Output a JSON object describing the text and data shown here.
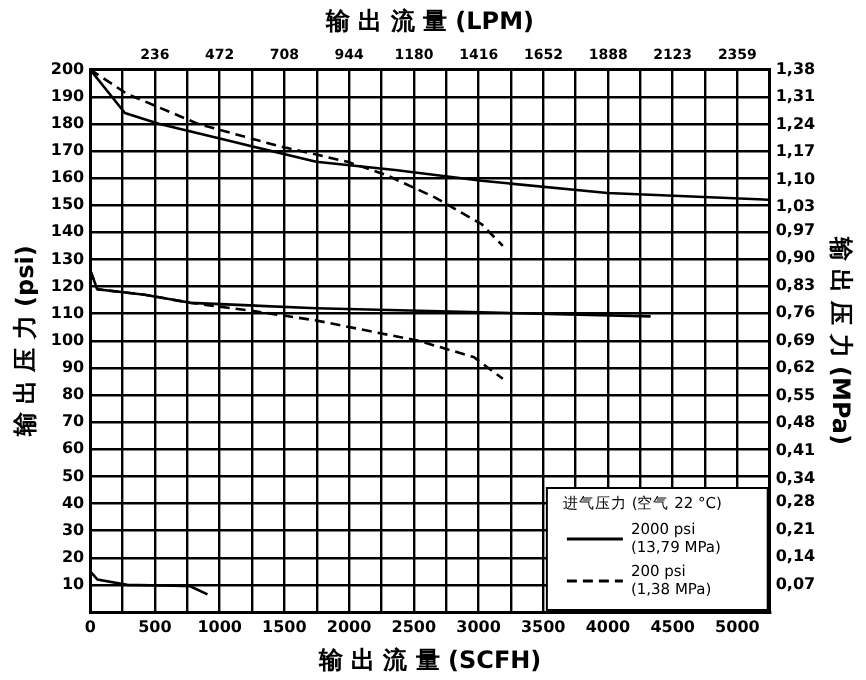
{
  "chart_data": {
    "type": "line",
    "xlabel": "输 出 流 量 (SCFH)",
    "x2label": "输 出 流 量 (LPM)",
    "ylabel": "输 出 压 力 (psi)",
    "y2label": "输 出 压 力 (MPa)",
    "legend_title": "进气压力 (空气 22 °C)",
    "xlim": [
      0,
      5250
    ],
    "xticks": [
      0,
      {
        "value": 250,
        "label": null
      },
      500,
      {
        "value": 750,
        "label": null
      },
      1000,
      {
        "value": 1250,
        "label": null
      },
      1500,
      {
        "value": 1750,
        "label": null
      },
      2000,
      {
        "value": 2250,
        "label": null
      },
      2500,
      {
        "value": 2750,
        "label": null
      },
      3000,
      {
        "value": 3250,
        "label": null
      },
      3500,
      {
        "value": 3750,
        "label": null
      },
      4000,
      {
        "value": 4250,
        "label": null
      },
      4500,
      {
        "value": 4750,
        "label": null
      },
      5000
    ],
    "x2lim": [
      0,
      2477
    ],
    "x2ticks": [
      236,
      472,
      708,
      944,
      1180,
      1416,
      1652,
      1888,
      2123,
      2359
    ],
    "ylim": [
      0,
      200
    ],
    "yticks": [
      10,
      20,
      30,
      40,
      50,
      60,
      70,
      80,
      90,
      100,
      110,
      120,
      130,
      140,
      150,
      160,
      170,
      180,
      190,
      200
    ],
    "y2lim": [
      0,
      1.38
    ],
    "y2ticks": [
      {
        "value": 0.07,
        "label": "0,07"
      },
      {
        "value": 0.14,
        "label": "0,14"
      },
      {
        "value": 0.21,
        "label": "0,21"
      },
      {
        "value": 0.28,
        "label": "0,28"
      },
      {
        "value": 0.34,
        "label": "0,34"
      },
      {
        "value": 0.41,
        "label": "0,41"
      },
      {
        "value": 0.48,
        "label": "0,48"
      },
      {
        "value": 0.55,
        "label": "0,55"
      },
      {
        "value": 0.62,
        "label": "0,62"
      },
      {
        "value": 0.69,
        "label": "0,69"
      },
      {
        "value": 0.76,
        "label": "0,76"
      },
      {
        "value": 0.83,
        "label": "0,83"
      },
      {
        "value": 0.9,
        "label": "0,90"
      },
      {
        "value": 0.97,
        "label": "0,97"
      },
      {
        "value": 1.03,
        "label": "1,03"
      },
      {
        "value": 1.1,
        "label": "1,10"
      },
      {
        "value": 1.17,
        "label": "1,17"
      },
      {
        "value": 1.24,
        "label": "1,24"
      },
      {
        "value": 1.31,
        "label": "1,31"
      },
      {
        "value": 1.38,
        "label": "1,38"
      }
    ],
    "grid": true,
    "legend": "bottom right",
    "marker": "none",
    "series": [
      {
        "name": "2000 psi\n(13,79 MPa)",
        "color": "#000000",
        "line_style": "solid",
        "x": [
          0,
          268,
          529,
          1137,
          1746,
          2356,
          3024,
          3997,
          5243
        ],
        "values": [
          200,
          184,
          180,
          173,
          166,
          163,
          159,
          154.5,
          152
        ]
      },
      {
        "name": "200 psi\n(1,38 MPa)",
        "color": "#000000",
        "line_style": "dashed",
        "x": [
          0,
          286,
          833,
          1442,
          1989,
          2293,
          2658,
          3024,
          3188
        ],
        "values": [
          200,
          191,
          180,
          172,
          166,
          161,
          153,
          143,
          135
        ]
      },
      {
        "color": "#000000",
        "line_style": "solid",
        "x": [
          0,
          55,
          420,
          773,
          1746,
          3024,
          4330
        ],
        "values": [
          126,
          119,
          117,
          114,
          112,
          110.5,
          109
        ]
      },
      {
        "color": "#000000",
        "line_style": "dashed",
        "x": [
          0,
          55,
          420,
          773,
          1016,
          1259,
          1746,
          2537,
          2963,
          3188
        ],
        "values": [
          126,
          119,
          117,
          114,
          112.5,
          111,
          107.5,
          100,
          94,
          86
        ]
      },
      {
        "color": "#000000",
        "line_style": "solid",
        "x": [
          0,
          55,
          286,
          651,
          773,
          906
        ],
        "values": [
          15,
          12,
          10,
          9.7,
          9.5,
          6.5
        ]
      }
    ]
  }
}
